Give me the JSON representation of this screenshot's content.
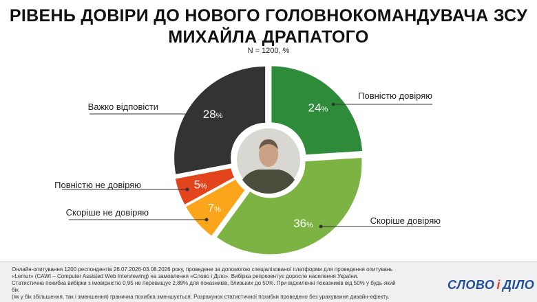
{
  "title_line1": "РІВЕНЬ ДОВІРИ ДО НОВОГО ГОЛОВНОКОМАНДУВАЧА ЗСУ",
  "title_line2": "МИХАЙЛА ДРАПАТОГО",
  "subtitle": "N = 1200, %",
  "chart_data": {
    "type": "pie",
    "variant": "donut",
    "title": "РІВЕНЬ ДОВІРИ ДО НОВОГО ГОЛОВНОКОМАНДУВАЧА ЗСУ МИХАЙЛА ДРАПАТОГО",
    "subtitle": "N = 1200, %",
    "unit": "%",
    "slices": [
      {
        "label": "Повністю довіряю",
        "value": 24,
        "value_label": "24",
        "color": "#2e8b3a"
      },
      {
        "label": "Скоріше довіряю",
        "value": 36,
        "value_label": "36",
        "color": "#7cb342"
      },
      {
        "label": "Скоріше не довіряю",
        "value": 7,
        "value_label": "7",
        "color": "#fba51a"
      },
      {
        "label": "Повністю не довіряю",
        "value": 5,
        "value_label": "5",
        "color": "#e2441c"
      },
      {
        "label": "Важко відповісти",
        "value": 28,
        "value_label": "28",
        "color": "#333333"
      }
    ]
  },
  "footnote": [
    "Онлайн-опитування 1200 респондентів 26.07.2026-03.08.2026 року, проведене за допомогою спеціалізованої платформи для проведення опитувань",
    "«Lemur» (CAWI – Computer Assisted Web Interviewing) на замовлення «Слово і Діло». Вибірка репрезентує доросле населення України.",
    "Статистична похибка вибірки з імовірністю 0,95 не перевищує 2,89% для показників, близьких до 50%. При відхиленні показників від 50% у будь-який бік",
    "(як у бік збільшення, так і зменшення) гранична похибка зменшується. Розрахунок статистичної похибки проведено без урахування дизайн-ефекту."
  ],
  "logo": {
    "left": "СЛОВО",
    "mid": "і",
    "right": "ДІЛО"
  }
}
